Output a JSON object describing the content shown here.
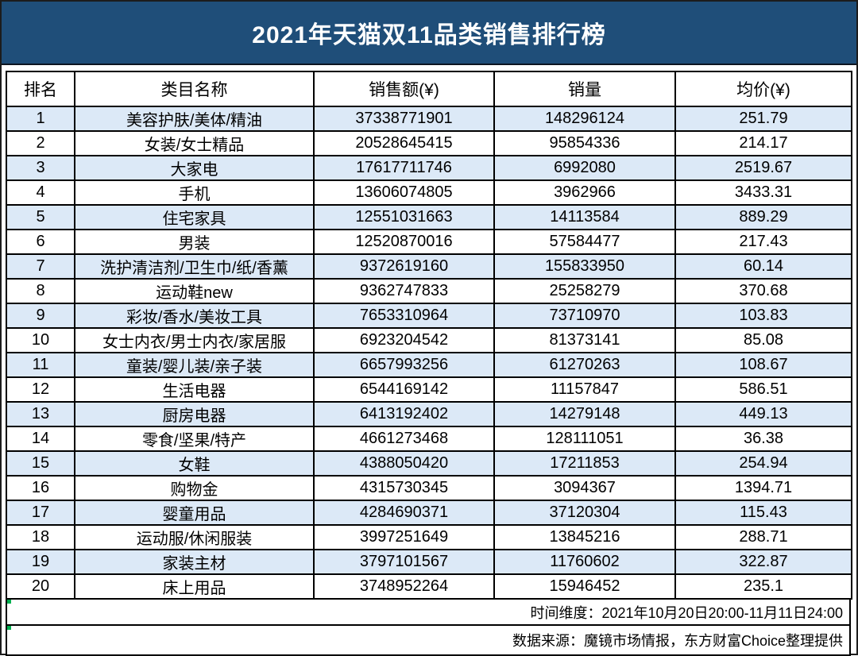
{
  "title": "2021年天猫双11品类销售排行榜",
  "chart_data": {
    "type": "table",
    "title": "2021年天猫双11品类销售排行榜",
    "columns": [
      "排名",
      "类目名称",
      "销售额(¥)",
      "销量",
      "均价(¥)"
    ],
    "rows": [
      [
        "1",
        "美容护肤/美体/精油",
        "37338771901",
        "148296124",
        "251.79"
      ],
      [
        "2",
        "女装/女士精品",
        "20528645415",
        "95854336",
        "214.17"
      ],
      [
        "3",
        "大家电",
        "17617711746",
        "6992080",
        "2519.67"
      ],
      [
        "4",
        "手机",
        "13606074805",
        "3962966",
        "3433.31"
      ],
      [
        "5",
        "住宅家具",
        "12551031663",
        "14113584",
        "889.29"
      ],
      [
        "6",
        "男装",
        "12520870016",
        "57584477",
        "217.43"
      ],
      [
        "7",
        "洗护清洁剂/卫生巾/纸/香薰",
        "9372619160",
        "155833950",
        "60.14"
      ],
      [
        "8",
        "运动鞋new",
        "9362747833",
        "25258279",
        "370.68"
      ],
      [
        "9",
        "彩妆/香水/美妆工具",
        "7653310964",
        "73710970",
        "103.83"
      ],
      [
        "10",
        "女士内衣/男士内衣/家居服",
        "6923204542",
        "81373141",
        "85.08"
      ],
      [
        "11",
        "童装/婴儿装/亲子装",
        "6657993256",
        "61270263",
        "108.67"
      ],
      [
        "12",
        "生活电器",
        "6544169142",
        "11157847",
        "586.51"
      ],
      [
        "13",
        "厨房电器",
        "6413192402",
        "14279148",
        "449.13"
      ],
      [
        "14",
        "零食/坚果/特产",
        "4661273468",
        "128111051",
        "36.38"
      ],
      [
        "15",
        "女鞋",
        "4388050420",
        "17211853",
        "254.94"
      ],
      [
        "16",
        "购物金",
        "4315730345",
        "3094367",
        "1394.71"
      ],
      [
        "17",
        "婴童用品",
        "4284690371",
        "37120304",
        "115.43"
      ],
      [
        "18",
        "运动服/休闲服装",
        "3997251649",
        "13845216",
        "288.71"
      ],
      [
        "19",
        "家装主材",
        "3797101567",
        "11760602",
        "322.87"
      ],
      [
        "20",
        "床上用品",
        "3748952264",
        "15946452",
        "235.1"
      ]
    ]
  },
  "footer": {
    "time_range": "时间维度：2021年10月20日20:00-11月11日24:00",
    "source": "数据来源：魔镜市场情报，东方财富Choice整理提供"
  },
  "colors": {
    "banner": "#1F4E79",
    "stripe": "#DCE9F7",
    "border": "#000000",
    "title_text": "#FFFFFF",
    "flag": "#00B050"
  }
}
